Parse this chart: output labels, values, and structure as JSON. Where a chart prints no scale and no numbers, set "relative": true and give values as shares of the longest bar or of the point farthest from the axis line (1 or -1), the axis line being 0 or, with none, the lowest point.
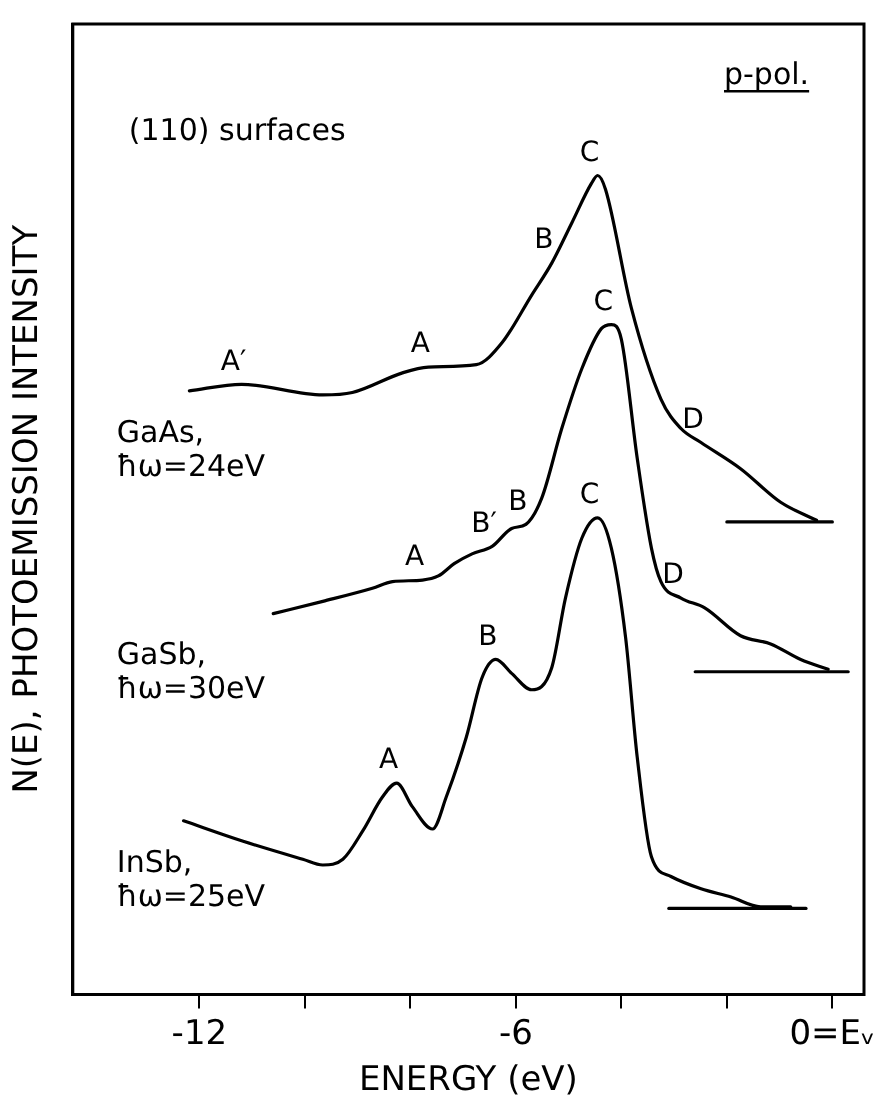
{
  "chart_data": {
    "type": "line",
    "relative": true,
    "xlabel": "ENERGY (eV)",
    "ylabel": "N(E), PHOTOEMISSION INTENSITY",
    "xlim": [
      -14.4,
      0.6
    ],
    "xticks": [
      -12,
      {
        "value": -10,
        "label": null
      },
      {
        "value": -8,
        "label": null
      },
      -6,
      {
        "value": -4,
        "label": null
      },
      {
        "value": -2,
        "label": null
      },
      {
        "value": 0,
        "label": "0=Eᵥ"
      }
    ],
    "grid": false,
    "legend": false,
    "marker": "none",
    "line_style": "solid",
    "series": [
      {
        "name": "GaAs, ħω=24eV",
        "color": "#000000",
        "x": [
          -12.19,
          -11.2,
          -9.66,
          -9.1,
          -8.15,
          -7.66,
          -6.75,
          -6.26,
          -5.7,
          -5.32,
          -4.94,
          -4.57,
          -4.45,
          -4.3,
          -3.81,
          -3.25,
          -2.87,
          -2.49,
          -1.74,
          -0.98,
          -0.3
        ],
        "values": [
          0.737,
          0.745,
          0.732,
          0.735,
          0.759,
          0.766,
          0.769,
          0.796,
          0.854,
          0.893,
          0.942,
          0.99,
          1,
          0.983,
          0.838,
          0.727,
          0.691,
          0.674,
          0.642,
          0.601,
          0.579
        ]
      },
      {
        "color": "#000000",
        "x": [
          -2.0,
          0.0
        ],
        "values": [
          0.577,
          0.577
        ]
      },
      {
        "name": "GaSb, ħω=30eV",
        "color": "#000000",
        "x": [
          -10.6,
          -9.66,
          -8.72,
          -8.34,
          -7.77,
          -7.47,
          -7.17,
          -6.83,
          -6.45,
          -6.08,
          -5.81,
          -5.51,
          -5.13,
          -4.75,
          -4.38,
          -4.19,
          -4.0,
          -3.7,
          -3.43,
          -3.25,
          -2.87,
          -2.42,
          -1.74,
          -1.17,
          -0.6,
          -0.08
        ],
        "values": [
          0.465,
          0.48,
          0.496,
          0.504,
          0.506,
          0.511,
          0.526,
          0.538,
          0.547,
          0.569,
          0.574,
          0.606,
          0.691,
          0.764,
          0.813,
          0.818,
          0.8,
          0.655,
          0.545,
          0.504,
          0.484,
          0.472,
          0.438,
          0.428,
          0.409,
          0.397
        ]
      },
      {
        "color": "#000000",
        "x": [
          -2.6,
          0.3
        ],
        "values": [
          0.394,
          0.394
        ]
      },
      {
        "name": "InSb, ħω=25eV",
        "color": "#000000",
        "x": [
          -12.3,
          -11.17,
          -10.04,
          -9.66,
          -9.28,
          -8.9,
          -8.53,
          -8.26,
          -7.96,
          -7.58,
          -7.32,
          -6.94,
          -6.64,
          -6.38,
          -6.08,
          -5.7,
          -5.32,
          -5.06,
          -4.75,
          -4.45,
          -4.19,
          -3.92,
          -3.7,
          -3.43,
          -3.06,
          -2.49,
          -1.92,
          -1.36,
          -0.79
        ],
        "values": [
          0.212,
          0.187,
          0.165,
          0.158,
          0.165,
          0.2,
          0.241,
          0.258,
          0.229,
          0.202,
          0.241,
          0.314,
          0.387,
          0.409,
          0.392,
          0.372,
          0.399,
          0.484,
          0.557,
          0.582,
          0.545,
          0.436,
          0.29,
          0.168,
          0.144,
          0.129,
          0.119,
          0.107,
          0.107
        ]
      },
      {
        "color": "#000000",
        "x": [
          -3.1,
          -0.5
        ],
        "values": [
          0.105,
          0.105
        ]
      }
    ],
    "annotations": [
      "(110) surfaces",
      "p-pol.",
      {
        "text": "A′",
        "x": -11.2,
        "y": 0.745
      },
      {
        "text": "A",
        "x": -7.66,
        "y": 0.766
      },
      {
        "text": "B",
        "x": -5.32,
        "y": 0.893
      },
      {
        "text": "C",
        "x": -4.45,
        "y": 1
      },
      {
        "text": "D",
        "x": -2.49,
        "y": 0.674
      },
      {
        "text": "A",
        "x": -7.77,
        "y": 0.506
      },
      {
        "text": "B′",
        "x": -6.45,
        "y": 0.547
      },
      {
        "text": "B",
        "x": -5.81,
        "y": 0.574
      },
      {
        "text": "C",
        "x": -4.19,
        "y": 0.818
      },
      {
        "text": "D",
        "x": -2.87,
        "y": 0.484
      },
      {
        "text": "A",
        "x": -8.26,
        "y": 0.258
      },
      {
        "text": "B",
        "x": -6.38,
        "y": 0.409
      },
      {
        "text": "C",
        "x": -4.45,
        "y": 0.582
      }
    ]
  }
}
